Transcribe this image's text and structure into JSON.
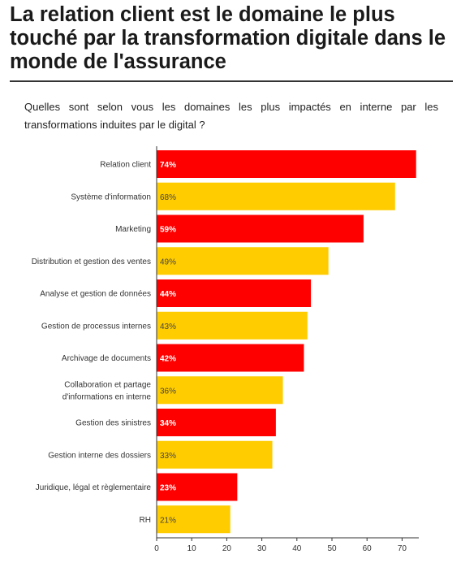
{
  "title": "La relation client est le domaine le plus touché par la transformation digitale dans le monde de l'assurance",
  "subtitle": "Quelles sont selon vous les domaines les plus impactés en interne par les transformations induites par le digital ?",
  "colors": {
    "red": "#ff0000",
    "yellow": "#ffcc00",
    "axis": "#333333"
  },
  "chart_data": {
    "type": "bar",
    "orientation": "horizontal",
    "categories": [
      "Relation client",
      "Système d'information",
      "Marketing",
      "Distribution et gestion des ventes",
      "Analyse et gestion de données",
      "Gestion de processus internes",
      "Archivage de documents",
      "Collaboration et partage d'informations en interne",
      "Gestion des sinistres",
      "Gestion interne des dossiers",
      "Juridique, légal et règlementaire",
      "RH"
    ],
    "category_lines": [
      [
        "Relation client"
      ],
      [
        "Système d'information"
      ],
      [
        "Marketing"
      ],
      [
        "Distribution et gestion des ventes"
      ],
      [
        "Analyse et gestion de données"
      ],
      [
        "Gestion de processus internes"
      ],
      [
        "Archivage de documents"
      ],
      [
        "Collaboration et partage",
        "d'informations en interne"
      ],
      [
        "Gestion des sinistres"
      ],
      [
        "Gestion interne des dossiers"
      ],
      [
        "Juridique, légal et règlementaire"
      ],
      [
        "RH"
      ]
    ],
    "values": [
      74,
      68,
      59,
      49,
      44,
      43,
      42,
      36,
      34,
      33,
      23,
      21
    ],
    "labels": [
      "74%",
      "68%",
      "59%",
      "49%",
      "44%",
      "43%",
      "42%",
      "36%",
      "34%",
      "33%",
      "23%",
      "21%"
    ],
    "bar_colors": [
      "red",
      "yellow",
      "red",
      "yellow",
      "red",
      "yellow",
      "red",
      "yellow",
      "red",
      "yellow",
      "red",
      "yellow"
    ],
    "xticks": [
      "0",
      "10",
      "20",
      "30",
      "40",
      "50",
      "60",
      "70"
    ],
    "xlim": [
      0,
      76
    ],
    "grid": false,
    "legend": "none"
  }
}
